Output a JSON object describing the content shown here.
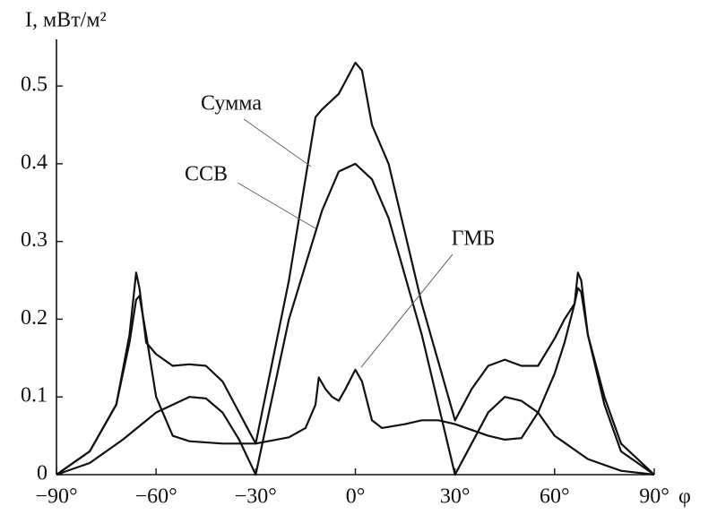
{
  "chart_data": {
    "type": "line",
    "y_label": "I, мВт/м²",
    "x_label": "φ",
    "xlim": [
      -90,
      90
    ],
    "ylim": [
      0,
      0.56
    ],
    "xticks": [
      {
        "value": -90,
        "label": "−90°"
      },
      {
        "value": -60,
        "label": "−60°"
      },
      {
        "value": -30,
        "label": "−30°"
      },
      {
        "value": 0,
        "label": "0°"
      },
      {
        "value": 30,
        "label": "30°"
      },
      {
        "value": 60,
        "label": "60°"
      },
      {
        "value": 90,
        "label": "90°"
      }
    ],
    "yticks": [
      0,
      0.1,
      0.2,
      0.3,
      0.4,
      0.5
    ],
    "series": [
      {
        "name": "Сумма",
        "color": "#111111",
        "x": [
          -90,
          -80,
          -72,
          -68,
          -66,
          -65,
          -63,
          -60,
          -55,
          -50,
          -45,
          -40,
          -35,
          -30,
          -20,
          -12,
          -10,
          -5,
          0,
          2,
          5,
          10,
          20,
          30,
          35,
          40,
          45,
          50,
          55,
          60,
          63,
          66,
          67,
          68,
          70,
          75,
          80,
          90
        ],
        "values": [
          0,
          0.03,
          0.09,
          0.18,
          0.26,
          0.24,
          0.17,
          0.155,
          0.14,
          0.142,
          0.14,
          0.12,
          0.08,
          0.04,
          0.25,
          0.46,
          0.47,
          0.49,
          0.53,
          0.52,
          0.45,
          0.4,
          0.22,
          0.07,
          0.11,
          0.14,
          0.148,
          0.14,
          0.14,
          0.175,
          0.2,
          0.22,
          0.26,
          0.25,
          0.18,
          0.09,
          0.03,
          0
        ]
      },
      {
        "name": "ССВ",
        "color": "#111111",
        "x": [
          -90,
          -80,
          -70,
          -60,
          -50,
          -45,
          -40,
          -35,
          -30,
          -20,
          -10,
          -5,
          0,
          5,
          10,
          20,
          30,
          35,
          40,
          45,
          50,
          55,
          60,
          70,
          80,
          90
        ],
        "values": [
          0,
          0.015,
          0.045,
          0.08,
          0.1,
          0.098,
          0.08,
          0.045,
          0,
          0.2,
          0.34,
          0.39,
          0.4,
          0.38,
          0.33,
          0.18,
          0,
          0.04,
          0.08,
          0.1,
          0.095,
          0.08,
          0.05,
          0.02,
          0.005,
          0
        ]
      },
      {
        "name": "ГМБ",
        "color": "#111111",
        "x": [
          -90,
          -80,
          -72,
          -68,
          -66,
          -65,
          -63,
          -60,
          -55,
          -50,
          -40,
          -30,
          -20,
          -15,
          -12,
          -11,
          -9,
          -7,
          -5,
          -3,
          0,
          2,
          5,
          8,
          15,
          20,
          25,
          30,
          40,
          45,
          50,
          55,
          60,
          63,
          66,
          67,
          68,
          70,
          75,
          80,
          90
        ],
        "values": [
          0,
          0.03,
          0.09,
          0.17,
          0.225,
          0.23,
          0.18,
          0.1,
          0.05,
          0.043,
          0.04,
          0.04,
          0.048,
          0.06,
          0.09,
          0.125,
          0.11,
          0.1,
          0.095,
          0.11,
          0.135,
          0.12,
          0.07,
          0.06,
          0.065,
          0.07,
          0.07,
          0.065,
          0.05,
          0.045,
          0.047,
          0.08,
          0.13,
          0.17,
          0.22,
          0.24,
          0.235,
          0.18,
          0.1,
          0.04,
          0
        ]
      }
    ]
  }
}
